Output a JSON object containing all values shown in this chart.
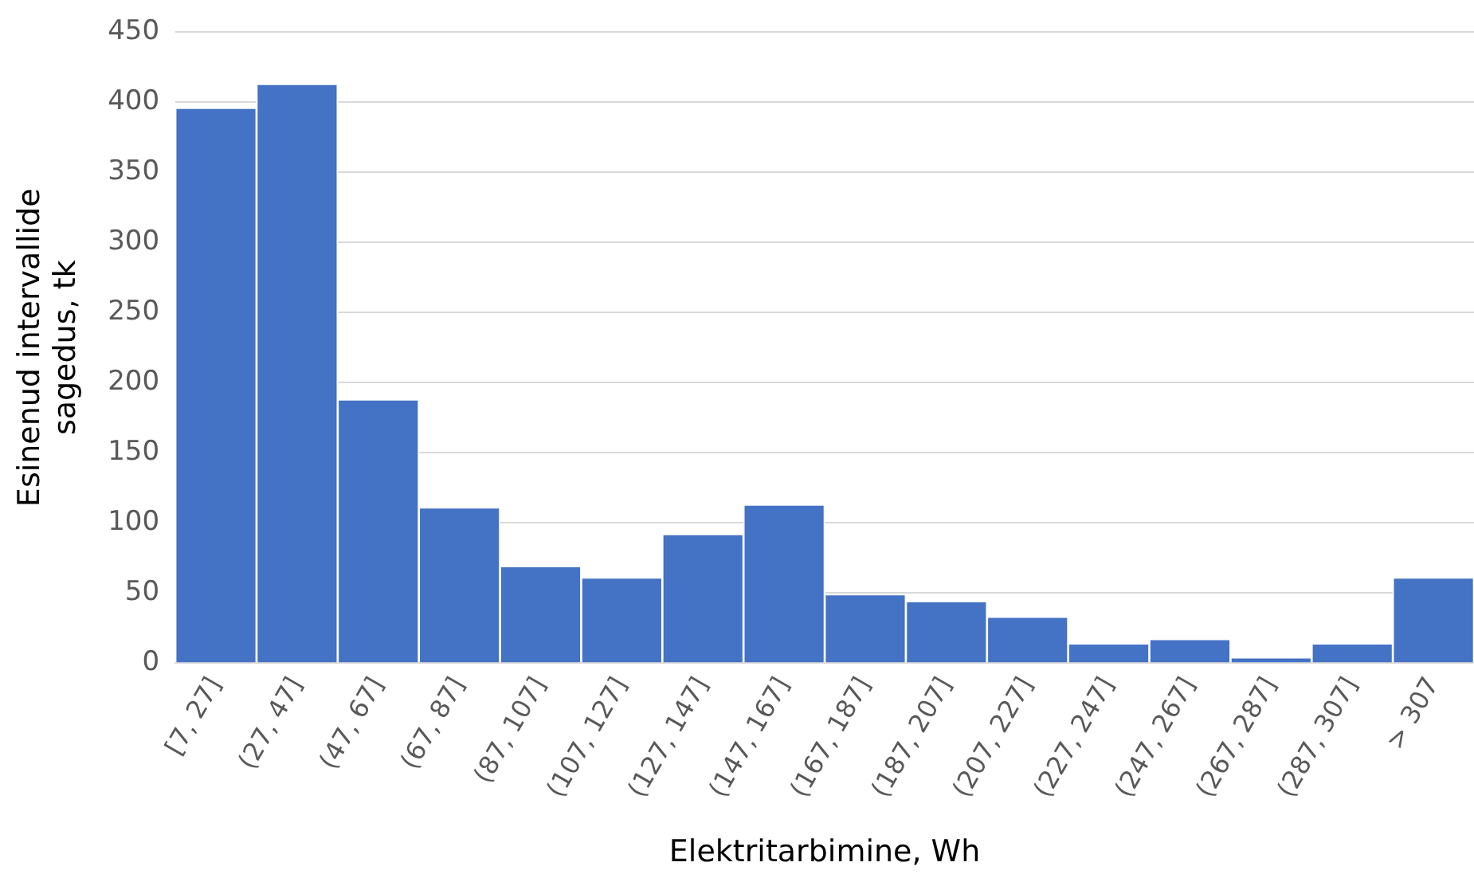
{
  "chart_data": {
    "type": "bar",
    "xlabel": "Elektritarbimine, Wh",
    "ylabel": "Esinenud intervallide sagedus, tk",
    "categories": [
      "[7, 27]",
      "(27, 47]",
      "(47, 67]",
      "(67, 87]",
      "(87, 107]",
      "(107, 127]",
      "(127, 147]",
      "(147, 167]",
      "(167, 187]",
      "(187, 207]",
      "(207, 227]",
      "(227, 247]",
      "(247, 267]",
      "(267, 287]",
      "(287, 307]",
      "> 307"
    ],
    "values": [
      396,
      413,
      188,
      111,
      69,
      61,
      92,
      113,
      49,
      44,
      33,
      14,
      17,
      4,
      14,
      61
    ],
    "color": "#4472c4",
    "ylim": [
      0,
      450
    ],
    "yticks": [
      0,
      50,
      100,
      150,
      200,
      250,
      300,
      350,
      400,
      450
    ],
    "grid": "y",
    "legend": false
  }
}
